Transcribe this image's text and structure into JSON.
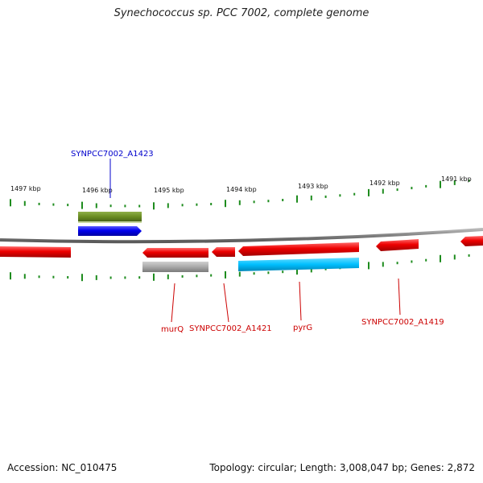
{
  "title": "Synechococcus sp. PCC 7002, complete genome",
  "footer": {
    "accession": "Accession: NC_010475",
    "summary": "Topology: circular; Length: 3,008,047 bp; Genes: 2,872"
  },
  "scale_labels": [
    "1497 kbp",
    "1496 kbp",
    "1495 kbp",
    "1494 kbp",
    "1493 kbp",
    "1492 kbp",
    "1491 kbp"
  ],
  "gene_labels": {
    "a1423": "SYNPCC7002_A1423",
    "murq": "murQ",
    "a1421": "SYNPCC7002_A1421",
    "pyrg": "pyrG",
    "a1419": "SYNPCC7002_A1419"
  },
  "colors": {
    "forward_gene": "#0000ee",
    "reverse_gene": "#ee0000",
    "gene_feature": "#6b8e23",
    "cds_gray": "#a9a9a9",
    "cds_blue": "#00bfff",
    "ticks": "#1e8c1e",
    "backbone": "#808080",
    "label_forward": "#0000cc",
    "label_reverse": "#cc0000"
  }
}
